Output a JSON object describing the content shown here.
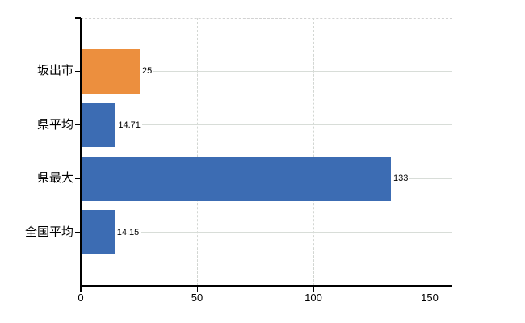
{
  "chart_data": {
    "type": "bar",
    "orientation": "horizontal",
    "title": "",
    "xlabel": "",
    "ylabel": "",
    "categories": [
      "坂出市",
      "県平均",
      "県最大",
      "全国平均"
    ],
    "values": [
      25,
      14.71,
      133,
      14.15
    ],
    "value_labels": [
      "25",
      "14.71",
      "133",
      "14.15"
    ],
    "bar_colors": [
      "#ec8f3e",
      "#3c6cb3",
      "#3c6cb3",
      "#3c6cb3"
    ],
    "x_ticks": [
      0,
      50,
      100,
      150
    ],
    "x_tick_labels": [
      "0",
      "50",
      "100",
      "150"
    ],
    "xlim": [
      0,
      160
    ],
    "grid": true,
    "legend": false,
    "colors": {
      "highlight_bar": "#ec8f3e",
      "default_bar": "#3c6cb3",
      "axis": "#000000",
      "gridline": "#d8ddd8",
      "text": "#000000",
      "background": "#ffffff"
    }
  }
}
